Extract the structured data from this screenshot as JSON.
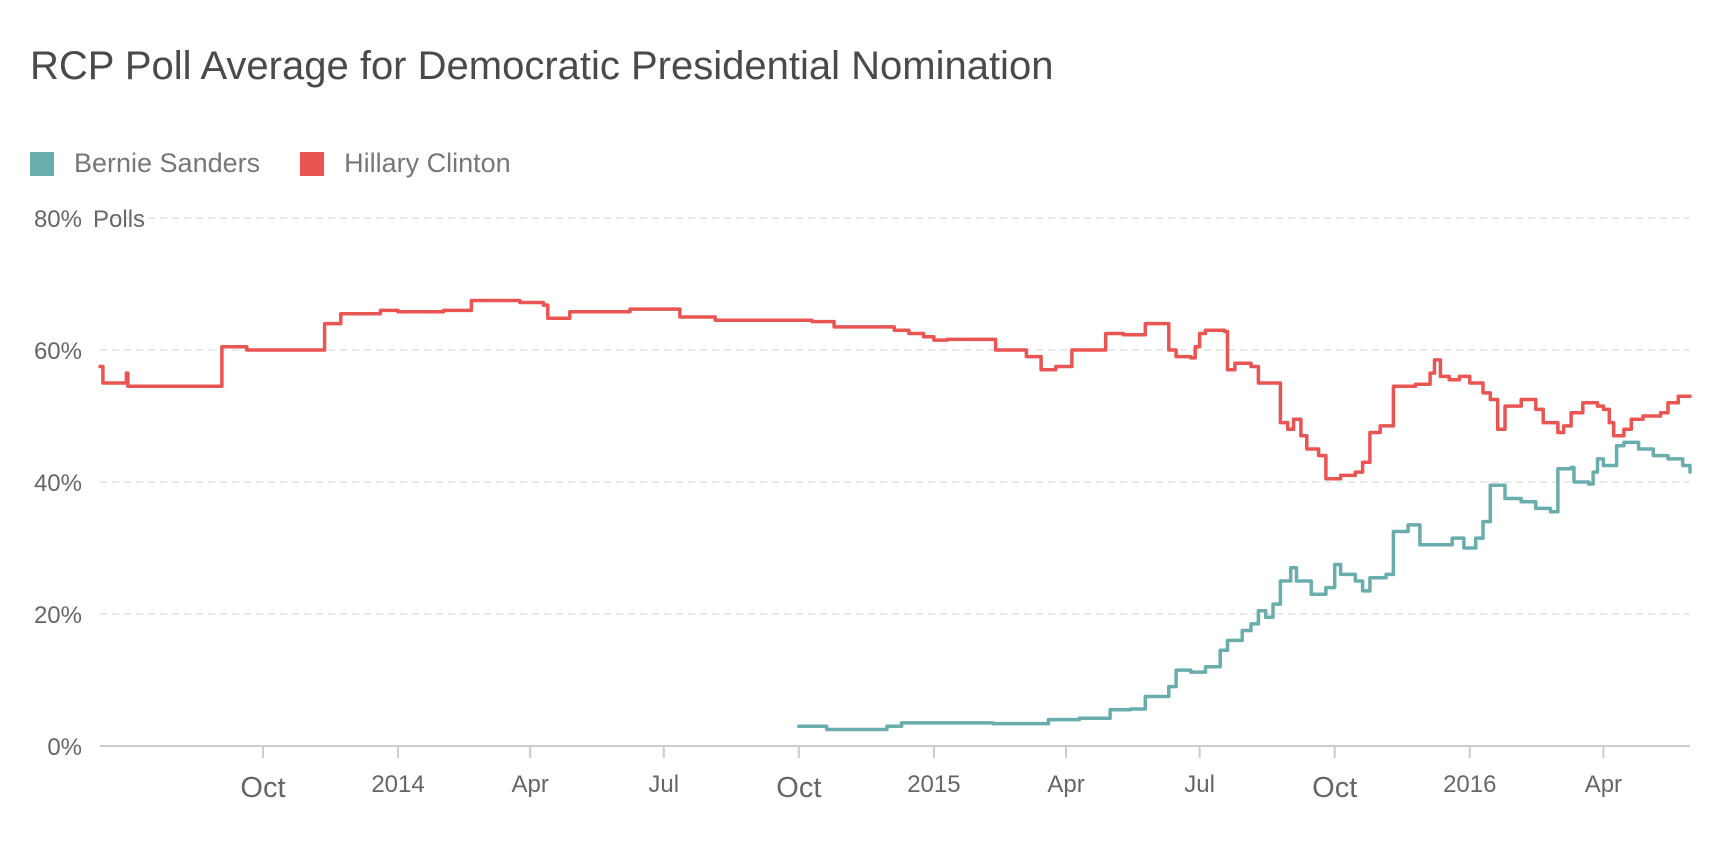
{
  "chart_data": {
    "type": "line",
    "title": "RCP Poll Average for Democratic Presidential Nomination",
    "ylabel": "Polls",
    "ylim": [
      0,
      80
    ],
    "y_ticks": [
      "0%",
      "20%",
      "40%",
      "60%",
      "80%"
    ],
    "y_tick_values": [
      0,
      20,
      40,
      60,
      80
    ],
    "grid": true,
    "legend_position": "top-left",
    "xlim": [
      "2013-06-12",
      "2016-05-30"
    ],
    "x_ticks": [
      {
        "date": "2013-10-01",
        "label": "Oct",
        "major": true
      },
      {
        "date": "2014-01-01",
        "label": "2014",
        "major": false
      },
      {
        "date": "2014-04-01",
        "label": "Apr",
        "major": false
      },
      {
        "date": "2014-07-01",
        "label": "Jul",
        "major": false
      },
      {
        "date": "2014-10-01",
        "label": "Oct",
        "major": true
      },
      {
        "date": "2015-01-01",
        "label": "2015",
        "major": false
      },
      {
        "date": "2015-04-01",
        "label": "Apr",
        "major": false
      },
      {
        "date": "2015-07-01",
        "label": "Jul",
        "major": false
      },
      {
        "date": "2015-10-01",
        "label": "Oct",
        "major": true
      },
      {
        "date": "2016-01-01",
        "label": "2016",
        "major": false
      },
      {
        "date": "2016-04-01",
        "label": "Apr",
        "major": false
      }
    ],
    "series": [
      {
        "name": "Bernie Sanders",
        "color": "#6aadad",
        "points": [
          [
            "2014-10-01",
            3.0
          ],
          [
            "2014-10-20",
            2.5
          ],
          [
            "2014-11-30",
            3.0
          ],
          [
            "2014-12-10",
            3.5
          ],
          [
            "2015-01-10",
            3.5
          ],
          [
            "2015-02-10",
            3.4
          ],
          [
            "2015-03-01",
            3.4
          ],
          [
            "2015-03-20",
            4.0
          ],
          [
            "2015-04-10",
            4.2
          ],
          [
            "2015-05-01",
            5.5
          ],
          [
            "2015-05-15",
            5.6
          ],
          [
            "2015-05-25",
            7.5
          ],
          [
            "2015-06-10",
            9.0
          ],
          [
            "2015-06-15",
            11.5
          ],
          [
            "2015-06-25",
            11.2
          ],
          [
            "2015-07-05",
            12.0
          ],
          [
            "2015-07-15",
            14.5
          ],
          [
            "2015-07-20",
            16.0
          ],
          [
            "2015-07-30",
            17.5
          ],
          [
            "2015-08-05",
            18.5
          ],
          [
            "2015-08-10",
            20.5
          ],
          [
            "2015-08-15",
            19.5
          ],
          [
            "2015-08-20",
            21.5
          ],
          [
            "2015-08-25",
            25.0
          ],
          [
            "2015-09-01",
            27.0
          ],
          [
            "2015-09-05",
            25.0
          ],
          [
            "2015-09-15",
            23.0
          ],
          [
            "2015-09-25",
            24.0
          ],
          [
            "2015-10-01",
            27.5
          ],
          [
            "2015-10-05",
            26.0
          ],
          [
            "2015-10-15",
            25.0
          ],
          [
            "2015-10-20",
            23.5
          ],
          [
            "2015-10-25",
            25.5
          ],
          [
            "2015-11-05",
            26.0
          ],
          [
            "2015-11-10",
            32.5
          ],
          [
            "2015-11-20",
            33.5
          ],
          [
            "2015-11-28",
            30.5
          ],
          [
            "2015-12-10",
            30.5
          ],
          [
            "2015-12-20",
            31.5
          ],
          [
            "2015-12-28",
            30.0
          ],
          [
            "2016-01-05",
            31.5
          ],
          [
            "2016-01-10",
            34.0
          ],
          [
            "2016-01-15",
            39.5
          ],
          [
            "2016-01-25",
            37.5
          ],
          [
            "2016-02-05",
            37.0
          ],
          [
            "2016-02-15",
            36.0
          ],
          [
            "2016-02-25",
            35.5
          ],
          [
            "2016-03-01",
            42.0
          ],
          [
            "2016-03-10",
            42.2
          ],
          [
            "2016-03-12",
            40.0
          ],
          [
            "2016-03-22",
            39.7
          ],
          [
            "2016-03-25",
            41.5
          ],
          [
            "2016-03-28",
            43.5
          ],
          [
            "2016-04-01",
            42.5
          ],
          [
            "2016-04-10",
            45.5
          ],
          [
            "2016-04-15",
            46.0
          ],
          [
            "2016-04-25",
            45.0
          ],
          [
            "2016-05-05",
            44.0
          ],
          [
            "2016-05-15",
            43.5
          ],
          [
            "2016-05-25",
            42.5
          ],
          [
            "2016-05-30",
            41.5
          ]
        ]
      },
      {
        "name": "Hillary Clinton",
        "color": "#e85552",
        "points": [
          [
            "2013-06-12",
            57.5
          ],
          [
            "2013-06-14",
            55.0
          ],
          [
            "2013-06-28",
            55.0
          ],
          [
            "2013-06-30",
            56.5
          ],
          [
            "2013-07-01",
            54.5
          ],
          [
            "2013-09-01",
            54.5
          ],
          [
            "2013-09-03",
            60.5
          ],
          [
            "2013-09-20",
            60.0
          ],
          [
            "2013-11-10",
            60.0
          ],
          [
            "2013-11-12",
            64.0
          ],
          [
            "2013-11-23",
            65.5
          ],
          [
            "2013-12-15",
            65.5
          ],
          [
            "2013-12-20",
            66.0
          ],
          [
            "2014-01-01",
            65.8
          ],
          [
            "2014-02-01",
            66.0
          ],
          [
            "2014-02-15",
            66.0
          ],
          [
            "2014-02-20",
            67.5
          ],
          [
            "2014-03-25",
            67.2
          ],
          [
            "2014-04-10",
            66.8
          ],
          [
            "2014-04-13",
            64.8
          ],
          [
            "2014-04-28",
            65.8
          ],
          [
            "2014-06-05",
            65.8
          ],
          [
            "2014-06-08",
            66.2
          ],
          [
            "2014-07-10",
            66.2
          ],
          [
            "2014-07-12",
            65.0
          ],
          [
            "2014-08-01",
            65.0
          ],
          [
            "2014-08-05",
            64.5
          ],
          [
            "2014-10-01",
            64.5
          ],
          [
            "2014-10-10",
            64.3
          ],
          [
            "2014-10-25",
            63.5
          ],
          [
            "2014-11-30",
            63.5
          ],
          [
            "2014-12-05",
            63.0
          ],
          [
            "2014-12-15",
            62.5
          ],
          [
            "2014-12-25",
            62.0
          ],
          [
            "2015-01-01",
            61.5
          ],
          [
            "2015-01-10",
            61.6
          ],
          [
            "2015-02-10",
            61.6
          ],
          [
            "2015-02-12",
            60.0
          ],
          [
            "2015-03-01",
            60.0
          ],
          [
            "2015-03-05",
            59.0
          ],
          [
            "2015-03-15",
            57.0
          ],
          [
            "2015-03-25",
            57.5
          ],
          [
            "2015-04-01",
            57.5
          ],
          [
            "2015-04-05",
            60.0
          ],
          [
            "2015-04-20",
            60.0
          ],
          [
            "2015-04-28",
            62.5
          ],
          [
            "2015-05-10",
            62.3
          ],
          [
            "2015-05-25",
            64.0
          ],
          [
            "2015-06-05",
            64.0
          ],
          [
            "2015-06-10",
            60.0
          ],
          [
            "2015-06-15",
            59.0
          ],
          [
            "2015-06-25",
            58.8
          ],
          [
            "2015-06-28",
            60.5
          ],
          [
            "2015-07-01",
            62.5
          ],
          [
            "2015-07-05",
            63.0
          ],
          [
            "2015-07-18",
            62.8
          ],
          [
            "2015-07-20",
            57.0
          ],
          [
            "2015-07-25",
            58.0
          ],
          [
            "2015-08-05",
            57.5
          ],
          [
            "2015-08-10",
            55.0
          ],
          [
            "2015-08-20",
            55.0
          ],
          [
            "2015-08-25",
            49.0
          ],
          [
            "2015-08-30",
            48.0
          ],
          [
            "2015-09-03",
            49.5
          ],
          [
            "2015-09-08",
            47.0
          ],
          [
            "2015-09-12",
            45.0
          ],
          [
            "2015-09-20",
            44.0
          ],
          [
            "2015-09-25",
            40.5
          ],
          [
            "2015-10-05",
            41.0
          ],
          [
            "2015-10-15",
            41.5
          ],
          [
            "2015-10-20",
            43.0
          ],
          [
            "2015-10-25",
            47.5
          ],
          [
            "2015-11-01",
            48.5
          ],
          [
            "2015-11-05",
            48.5
          ],
          [
            "2015-11-10",
            54.5
          ],
          [
            "2015-11-25",
            54.8
          ],
          [
            "2015-12-05",
            56.5
          ],
          [
            "2015-12-08",
            58.5
          ],
          [
            "2015-12-12",
            56.0
          ],
          [
            "2015-12-18",
            55.5
          ],
          [
            "2015-12-25",
            56.0
          ],
          [
            "2016-01-01",
            55.0
          ],
          [
            "2016-01-10",
            53.5
          ],
          [
            "2016-01-15",
            52.5
          ],
          [
            "2016-01-20",
            48.0
          ],
          [
            "2016-01-25",
            51.5
          ],
          [
            "2016-02-05",
            52.5
          ],
          [
            "2016-02-15",
            51.0
          ],
          [
            "2016-02-20",
            49.0
          ],
          [
            "2016-03-01",
            47.5
          ],
          [
            "2016-03-05",
            48.5
          ],
          [
            "2016-03-10",
            50.5
          ],
          [
            "2016-03-18",
            52.0
          ],
          [
            "2016-03-28",
            51.5
          ],
          [
            "2016-04-01",
            51.0
          ],
          [
            "2016-04-05",
            49.0
          ],
          [
            "2016-04-08",
            47.0
          ],
          [
            "2016-04-15",
            48.0
          ],
          [
            "2016-04-20",
            49.5
          ],
          [
            "2016-04-28",
            50.0
          ],
          [
            "2016-05-10",
            50.5
          ],
          [
            "2016-05-15",
            52.0
          ],
          [
            "2016-05-22",
            53.0
          ],
          [
            "2016-05-30",
            53.0
          ]
        ]
      }
    ]
  }
}
